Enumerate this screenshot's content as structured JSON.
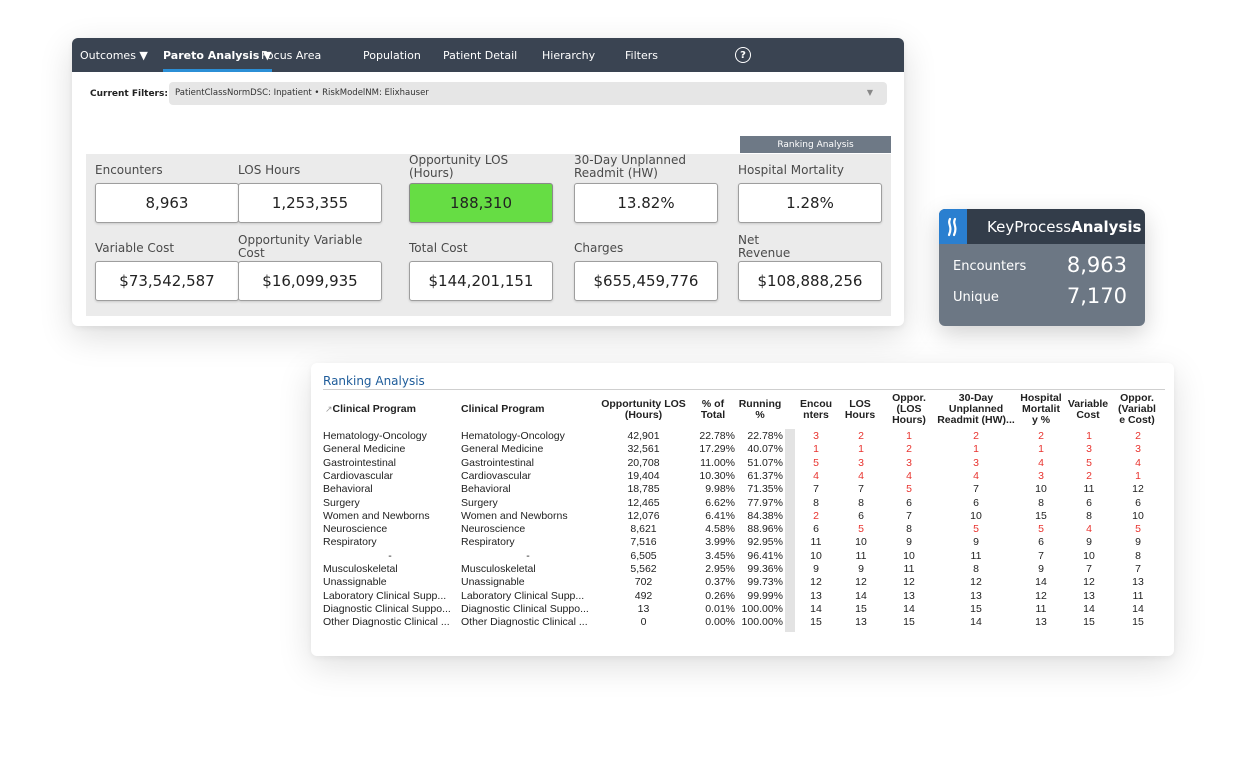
{
  "nav": {
    "items": [
      {
        "label": "Outcomes ▼",
        "active": false
      },
      {
        "label": "Pareto Analysis ▼",
        "active": true
      },
      {
        "label": "Focus Area",
        "active": false
      },
      {
        "label": "Population",
        "active": false
      },
      {
        "label": "Patient Detail",
        "active": false
      },
      {
        "label": "Hierarchy",
        "active": false
      },
      {
        "label": "Filters",
        "active": false
      }
    ],
    "help": "?"
  },
  "filters": {
    "label": "Current Filters:",
    "value": "PatientClassNormDSC: Inpatient • RiskModelNM: Elixhauser"
  },
  "ranking_tab": "Ranking Analysis",
  "metrics": [
    {
      "label": "Encounters",
      "value": "8,963",
      "highlight": false
    },
    {
      "label": "LOS Hours",
      "value": "1,253,355",
      "highlight": false
    },
    {
      "label": "Opportunity LOS (Hours)",
      "value": "188,310",
      "highlight": true
    },
    {
      "label": "30-Day Unplanned Readmit (HW)",
      "value": "13.82%",
      "highlight": false
    },
    {
      "label": "Hospital Mortality",
      "value": "1.28%",
      "highlight": false
    },
    {
      "label": "Variable Cost",
      "value": "$73,542,587",
      "highlight": false
    },
    {
      "label": "Opportunity Variable Cost",
      "value": "$16,099,935",
      "highlight": false
    },
    {
      "label": "Total Cost",
      "value": "$144,201,151",
      "highlight": false
    },
    {
      "label": "Charges",
      "value": "$655,459,776",
      "highlight": false
    },
    {
      "label": "Net Revenue",
      "value": "$108,888,256",
      "highlight": false
    }
  ],
  "kpa": {
    "title_light": "KeyProcess",
    "title_bold": "Analysis",
    "rows": [
      {
        "label": "Encounters",
        "value": "8,963"
      },
      {
        "label": "Unique",
        "value": "7,170"
      }
    ],
    "accent": "#2a7fd0"
  },
  "ranking": {
    "title": "Ranking Analysis",
    "headers": [
      "Clinical Program",
      "Clinical Program",
      "Opportunity LOS (Hours)",
      "% of Total",
      "Running %",
      "Encou nters",
      "LOS Hours",
      "Oppor. (LOS Hours)",
      "30-Day Unplanned Readmit (HW)...",
      "Hospital Mortalit y %",
      "Variable Cost",
      "Oppor. (Variabl e Cost)"
    ],
    "rows": [
      [
        "Hematology-Oncology",
        "Hematology-Oncology",
        "42,901",
        "22.78%",
        "22.78%",
        "3",
        "2",
        "1",
        "2",
        "2",
        "1",
        "2"
      ],
      [
        "General Medicine",
        "General Medicine",
        "32,561",
        "17.29%",
        "40.07%",
        "1",
        "1",
        "2",
        "1",
        "1",
        "3",
        "3"
      ],
      [
        "Gastrointestinal",
        "Gastrointestinal",
        "20,708",
        "11.00%",
        "51.07%",
        "5",
        "3",
        "3",
        "3",
        "4",
        "5",
        "4"
      ],
      [
        "Cardiovascular",
        "Cardiovascular",
        "19,404",
        "10.30%",
        "61.37%",
        "4",
        "4",
        "4",
        "4",
        "3",
        "2",
        "1"
      ],
      [
        "Behavioral",
        "Behavioral",
        "18,785",
        "9.98%",
        "71.35%",
        "7",
        "7",
        "5",
        "7",
        "10",
        "11",
        "12"
      ],
      [
        "Surgery",
        "Surgery",
        "12,465",
        "6.62%",
        "77.97%",
        "8",
        "8",
        "6",
        "6",
        "8",
        "6",
        "6"
      ],
      [
        "Women and Newborns",
        "Women and Newborns",
        "12,076",
        "6.41%",
        "84.38%",
        "2",
        "6",
        "7",
        "10",
        "15",
        "8",
        "10"
      ],
      [
        "Neuroscience",
        "Neuroscience",
        "8,621",
        "4.58%",
        "88.96%",
        "6",
        "5",
        "8",
        "5",
        "5",
        "4",
        "5"
      ],
      [
        "Respiratory",
        "Respiratory",
        "7,516",
        "3.99%",
        "92.95%",
        "11",
        "10",
        "9",
        "9",
        "6",
        "9",
        "9"
      ],
      [
        "-",
        "-",
        "6,505",
        "3.45%",
        "96.41%",
        "10",
        "11",
        "10",
        "11",
        "7",
        "10",
        "8"
      ],
      [
        "Musculoskeletal",
        "Musculoskeletal",
        "5,562",
        "2.95%",
        "99.36%",
        "9",
        "9",
        "11",
        "8",
        "9",
        "7",
        "7"
      ],
      [
        "Unassignable",
        "Unassignable",
        "702",
        "0.37%",
        "99.73%",
        "12",
        "12",
        "12",
        "12",
        "14",
        "12",
        "13"
      ],
      [
        "Laboratory Clinical Supp...",
        "Laboratory Clinical Supp...",
        "492",
        "0.26%",
        "99.99%",
        "13",
        "14",
        "13",
        "13",
        "12",
        "13",
        "11"
      ],
      [
        "Diagnostic Clinical Suppo...",
        "Diagnostic Clinical Suppo...",
        "13",
        "0.01%",
        "100.00%",
        "14",
        "15",
        "14",
        "15",
        "11",
        "14",
        "14"
      ],
      [
        "Other Diagnostic Clinical ...",
        "Other Diagnostic Clinical ...",
        "0",
        "0.00%",
        "100.00%",
        "15",
        "13",
        "15",
        "14",
        "13",
        "15",
        "15"
      ]
    ],
    "highlight_color": "#e8342f",
    "highlight_max_rank": 5
  }
}
